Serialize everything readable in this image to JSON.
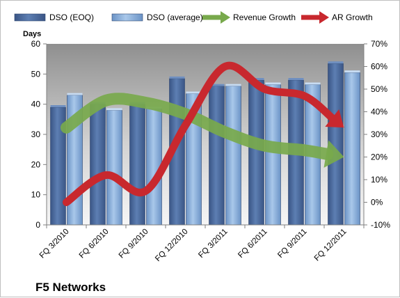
{
  "chart_data": {
    "type": "bar",
    "title": "F5 Networks",
    "ylabel": "Days",
    "categories": [
      "FQ 3/2010",
      "FQ 6/2010",
      "FQ 9/2010",
      "FQ 12/2010",
      "FQ 3/2011",
      "FQ 6/2011",
      "FQ 9/2011",
      "FQ 12/2011"
    ],
    "ylim": [
      0,
      60
    ],
    "yticks": [
      0,
      10,
      20,
      30,
      40,
      50,
      60
    ],
    "y2lim": [
      -10,
      70
    ],
    "y2ticks": [
      "-10%",
      "0%",
      "10%",
      "20%",
      "30%",
      "40%",
      "50%",
      "60%",
      "70%"
    ],
    "y2tick_values": [
      -10,
      0,
      10,
      20,
      30,
      40,
      50,
      60,
      70
    ],
    "grid": false,
    "legend_position": "top",
    "series": [
      {
        "name": "DSO (EOQ)",
        "kind": "bar",
        "axis": "left",
        "color": "#4a6a9c",
        "values": [
          39,
          40,
          40,
          48.5,
          46,
          48,
          48,
          53.5
        ]
      },
      {
        "name": "DSO (average)",
        "kind": "bar",
        "axis": "left",
        "color": "#7fa6d6",
        "values": [
          43,
          38,
          38.5,
          43.5,
          46,
          46.5,
          46.5,
          50.5
        ]
      },
      {
        "name": "Revenue Growth",
        "kind": "arrow-line",
        "axis": "right",
        "color": "#78a94c",
        "values": [
          33,
          45,
          44,
          39,
          31,
          25,
          23,
          20
        ]
      },
      {
        "name": "AR Growth",
        "kind": "arrow-line",
        "axis": "right",
        "color": "#c8282e",
        "values": [
          0,
          12,
          5,
          34,
          60,
          50,
          47,
          33
        ]
      }
    ]
  }
}
